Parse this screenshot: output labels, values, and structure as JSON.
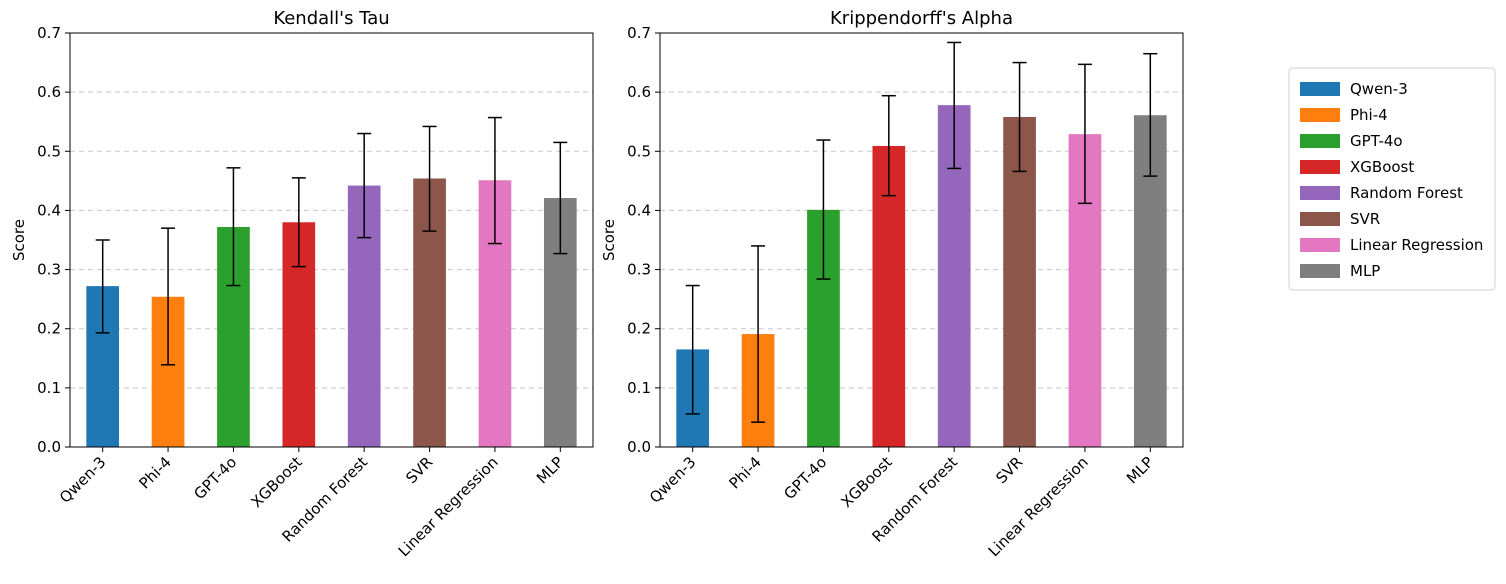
{
  "chart_data": [
    {
      "type": "bar",
      "title": "Kendall's Tau",
      "xlabel": "",
      "ylabel": "Score",
      "ylim": [
        0,
        0.7
      ],
      "yticks": [
        "0.0",
        "0.1",
        "0.2",
        "0.3",
        "0.4",
        "0.5",
        "0.6",
        "0.7"
      ],
      "grid": "y-dashed",
      "categories": [
        "Qwen-3",
        "Phi-4",
        "GPT-4o",
        "XGBoost",
        "Random Forest",
        "SVR",
        "Linear Regression",
        "MLP"
      ],
      "values": [
        0.272,
        0.254,
        0.372,
        0.38,
        0.442,
        0.454,
        0.451,
        0.421
      ],
      "error_low": [
        0.193,
        0.139,
        0.273,
        0.305,
        0.354,
        0.365,
        0.344,
        0.327
      ],
      "error_high": [
        0.35,
        0.37,
        0.472,
        0.455,
        0.53,
        0.542,
        0.557,
        0.515
      ]
    },
    {
      "type": "bar",
      "title": "Krippendorff's Alpha",
      "xlabel": "",
      "ylabel": "Score",
      "ylim": [
        0,
        0.7
      ],
      "yticks": [
        "0.0",
        "0.1",
        "0.2",
        "0.3",
        "0.4",
        "0.5",
        "0.6",
        "0.7"
      ],
      "grid": "y-dashed",
      "categories": [
        "Qwen-3",
        "Phi-4",
        "GPT-4o",
        "XGBoost",
        "Random Forest",
        "SVR",
        "Linear Regression",
        "MLP"
      ],
      "values": [
        0.165,
        0.191,
        0.401,
        0.509,
        0.578,
        0.558,
        0.529,
        0.561
      ],
      "error_low": [
        0.056,
        0.042,
        0.284,
        0.425,
        0.471,
        0.466,
        0.412,
        0.458
      ],
      "error_high": [
        0.273,
        0.34,
        0.519,
        0.594,
        0.684,
        0.65,
        0.647,
        0.665
      ]
    }
  ],
  "legend": {
    "placement": "right",
    "entries": [
      {
        "label": "Qwen-3",
        "color": "#1f77b4"
      },
      {
        "label": "Phi-4",
        "color": "#ff7f0e"
      },
      {
        "label": "GPT-4o",
        "color": "#2ca02c"
      },
      {
        "label": "XGBoost",
        "color": "#d62728"
      },
      {
        "label": "Random Forest",
        "color": "#9467bd"
      },
      {
        "label": "SVR",
        "color": "#8c564b"
      },
      {
        "label": "Linear Regression",
        "color": "#e377c2"
      },
      {
        "label": "MLP",
        "color": "#7f7f7f"
      }
    ]
  }
}
